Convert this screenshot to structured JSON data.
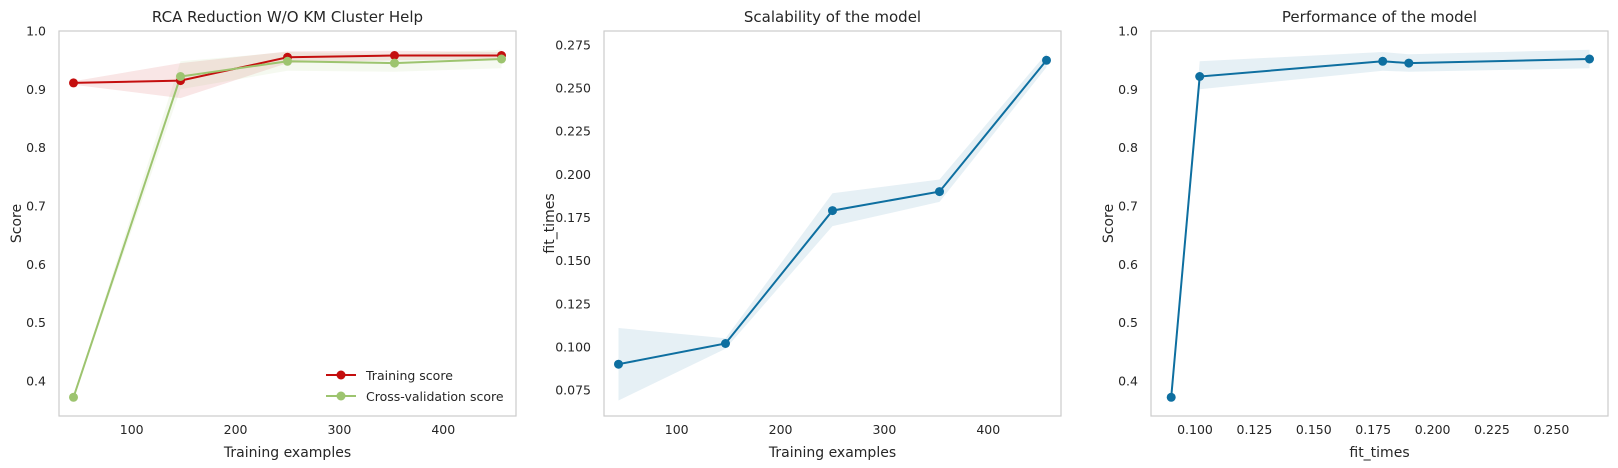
{
  "chart_data": [
    {
      "type": "line",
      "title": "RCA Reduction W/O KM Cluster Help",
      "xlabel": "Training examples",
      "ylabel": "Score",
      "xlim": [
        30,
        470
      ],
      "ylim": [
        0.34,
        1.0
      ],
      "xticks": [
        100,
        200,
        300,
        400
      ],
      "xtick_labels": [
        "100",
        "200",
        "300",
        "400"
      ],
      "yticks": [
        0.4,
        0.5,
        0.6,
        0.7,
        0.8,
        0.9,
        1.0
      ],
      "ytick_labels": [
        "0.4",
        "0.5",
        "0.6",
        "0.7",
        "0.8",
        "0.9",
        "1.0"
      ],
      "grid": false,
      "legend_position": "lower-right",
      "series": [
        {
          "name": "Training score",
          "color": "#c40e0e",
          "x": [
            44,
            147,
            250,
            353,
            456
          ],
          "y": [
            0.911,
            0.915,
            0.955,
            0.958,
            0.958
          ],
          "band_lower": [
            0.908,
            0.885,
            0.945,
            0.95,
            0.952
          ],
          "band_upper": [
            0.914,
            0.945,
            0.965,
            0.966,
            0.964
          ]
        },
        {
          "name": "Cross-validation score",
          "color": "#9dc46f",
          "x": [
            44,
            147,
            250,
            353,
            456
          ],
          "y": [
            0.372,
            0.922,
            0.948,
            0.945,
            0.952
          ],
          "band_lower": [
            0.37,
            0.9,
            0.932,
            0.93,
            0.936
          ],
          "band_upper": [
            0.374,
            0.948,
            0.964,
            0.96,
            0.968
          ]
        }
      ]
    },
    {
      "type": "line",
      "title": "Scalability of the model",
      "xlabel": "Training examples",
      "ylabel": "fit_times",
      "xlim": [
        30,
        470
      ],
      "ylim": [
        0.06,
        0.283
      ],
      "xticks": [
        100,
        200,
        300,
        400
      ],
      "xtick_labels": [
        "100",
        "200",
        "300",
        "400"
      ],
      "yticks": [
        0.075,
        0.1,
        0.125,
        0.15,
        0.175,
        0.2,
        0.225,
        0.25,
        0.275
      ],
      "ytick_labels": [
        "0.075",
        "0.100",
        "0.125",
        "0.150",
        "0.175",
        "0.200",
        "0.225",
        "0.250",
        "0.275"
      ],
      "grid": false,
      "series": [
        {
          "color": "#0e6fa0",
          "x": [
            44,
            147,
            250,
            353,
            456
          ],
          "y": [
            0.09,
            0.102,
            0.179,
            0.19,
            0.266
          ],
          "band_lower": [
            0.069,
            0.099,
            0.17,
            0.184,
            0.262
          ],
          "band_upper": [
            0.111,
            0.105,
            0.189,
            0.197,
            0.27
          ]
        }
      ]
    },
    {
      "type": "line",
      "title": "Performance of the model",
      "xlabel": "fit_times",
      "ylabel": "Score",
      "xlim": [
        0.0815,
        0.2738
      ],
      "ylim": [
        0.34,
        1.0
      ],
      "xticks": [
        0.1,
        0.125,
        0.15,
        0.175,
        0.2,
        0.225,
        0.25
      ],
      "xtick_labels": [
        "0.100",
        "0.125",
        "0.150",
        "0.175",
        "0.200",
        "0.225",
        "0.250"
      ],
      "yticks": [
        0.4,
        0.5,
        0.6,
        0.7,
        0.8,
        0.9,
        1.0
      ],
      "ytick_labels": [
        "0.4",
        "0.5",
        "0.6",
        "0.7",
        "0.8",
        "0.9",
        "1.0"
      ],
      "grid": false,
      "series": [
        {
          "color": "#0e6fa0",
          "x": [
            0.09,
            0.102,
            0.179,
            0.19,
            0.266
          ],
          "y": [
            0.372,
            0.922,
            0.948,
            0.945,
            0.952
          ],
          "band_lower": [
            0.37,
            0.9,
            0.932,
            0.93,
            0.936
          ],
          "band_upper": [
            0.374,
            0.948,
            0.964,
            0.96,
            0.968
          ]
        }
      ]
    }
  ]
}
